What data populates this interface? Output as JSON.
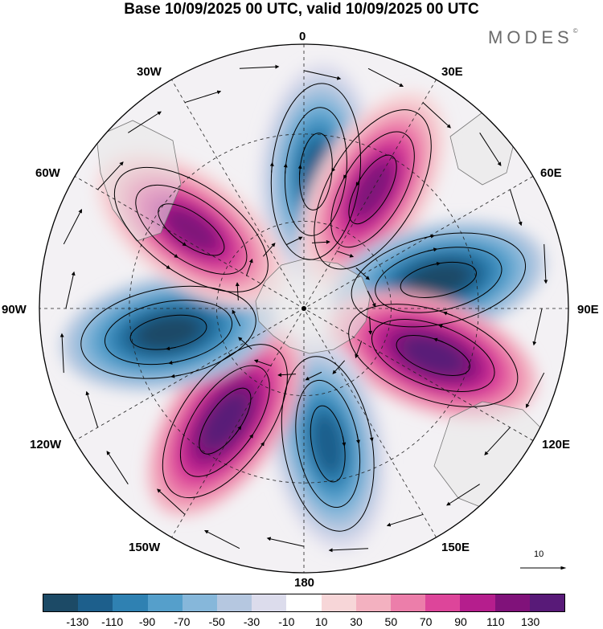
{
  "title": "Base 10/09/2025 00 UTC, valid 10/09/2025 00 UTC",
  "logo": {
    "text": "MODES",
    "mark": "©"
  },
  "map": {
    "projection": "south polar stereographic",
    "field": "anomaly with wind streamlines",
    "longitude_labels": {
      "top": "0",
      "top_right": "30E",
      "right_upper": "60E",
      "right": "90E",
      "right_lower": "120E",
      "bottom_right": "150E",
      "bottom": "180",
      "bottom_left": "150W",
      "left_lower": "120W",
      "left": "90W",
      "left_upper": "60W",
      "top_left": "30W"
    },
    "anomaly_lobes": [
      {
        "name": "lobe-0-negative",
        "lon": 5,
        "value": -130
      },
      {
        "name": "lobe-30e-positive",
        "lon": 30,
        "value": 120
      },
      {
        "name": "lobe-60e-negative",
        "lon": 78,
        "value": -140
      },
      {
        "name": "lobe-100e-positive",
        "lon": 110,
        "value": 130
      },
      {
        "name": "lobe-160e-negative",
        "lon": 170,
        "value": -130
      },
      {
        "name": "lobe-150w-positive",
        "lon": -145,
        "value": 140
      },
      {
        "name": "lobe-110w-negative",
        "lon": -100,
        "value": -140
      },
      {
        "name": "lobe-60w-positive",
        "lon": -55,
        "value": 120
      }
    ]
  },
  "vector_scale": {
    "value": "10"
  },
  "colorbar": {
    "colors": [
      "#1c4a66",
      "#1d5f8c",
      "#2f81b2",
      "#559fcb",
      "#86b7da",
      "#b5c7e0",
      "#dcdcec",
      "#ffffff",
      "#f7d6d8",
      "#f3b1c0",
      "#ec7eaa",
      "#dd459a",
      "#b51e8d",
      "#80127a",
      "#581a78"
    ],
    "tick_labels": [
      "-130",
      "-110",
      "-90",
      "-70",
      "-50",
      "-30",
      "-10",
      "10",
      "30",
      "50",
      "70",
      "90",
      "110",
      "130"
    ]
  }
}
